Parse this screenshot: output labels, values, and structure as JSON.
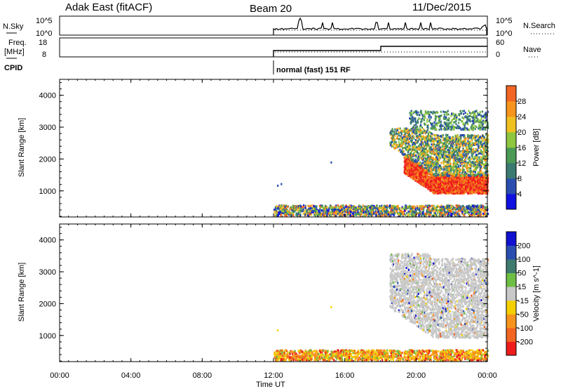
{
  "header": {
    "title": "Adak East (fitACF)",
    "beam": "Beam 20",
    "date": "11/Dec/2015"
  },
  "panels": {
    "nsky_label": "N.Sky",
    "nsky_ticks": [
      "10^5",
      "10^0"
    ],
    "nsearch_label": "N.Search",
    "freq_label_1": "Freq.",
    "freq_label_2": "[MHz]",
    "freq_ticks": [
      "18",
      "8"
    ],
    "nave_label": "Nave",
    "nave_ticks": [
      "60",
      "0"
    ],
    "cpid_label": "CPID",
    "cpid_text": "normal (fast) 151 RF"
  },
  "colors": {
    "power_scale": [
      "#1010e0",
      "#2a4db0",
      "#3a7a70",
      "#4b9a55",
      "#8ec63f",
      "#f0c020",
      "#f7941d",
      "#f26522",
      "#ee1c1c"
    ],
    "velocity_scale": [
      "#1010d0",
      "#2a4db0",
      "#3f7a6f",
      "#6fbe44",
      "#c8c8c8",
      "#f5d000",
      "#f7941d",
      "#f26522",
      "#ee1c1c"
    ]
  },
  "chart_data": [
    {
      "type": "heatmap",
      "title": "",
      "xlabel": "Time UT",
      "ylabel": "Slant Range [km]",
      "xlim": [
        "00:00",
        "24:00"
      ],
      "ylim": [
        180,
        4500
      ],
      "x_ticks": [
        "00:00",
        "04:00",
        "08:00",
        "12:00",
        "16:00",
        "20:00",
        "00:00"
      ],
      "y_ticks": [
        1000,
        2000,
        3000,
        4000
      ],
      "colorbar": {
        "label": "Power [dB]",
        "ticks": [
          4,
          8,
          12,
          16,
          20,
          24,
          28
        ],
        "range": [
          0,
          30
        ]
      },
      "data_start_hour": 12,
      "regions": [
        {
          "x": [
            12,
            24
          ],
          "y": [
            180,
            550
          ],
          "value": "mixed"
        },
        {
          "x": [
            19.5,
            24
          ],
          "y": [
            900,
            1700
          ],
          "value": 26
        },
        {
          "x": [
            18.5,
            24
          ],
          "y": [
            1400,
            2900
          ],
          "value": 14
        },
        {
          "x": [
            19.5,
            24
          ],
          "y": [
            2900,
            3550
          ],
          "value": 12
        }
      ]
    },
    {
      "type": "heatmap",
      "title": "",
      "xlabel": "Time UT",
      "ylabel": "Slant Range [km]",
      "xlim": [
        "00:00",
        "24:00"
      ],
      "ylim": [
        180,
        4500
      ],
      "x_ticks": [
        "00:00",
        "04:00",
        "08:00",
        "12:00",
        "16:00",
        "20:00",
        "00:00"
      ],
      "y_ticks": [
        1000,
        2000,
        3000,
        4000
      ],
      "colorbar": {
        "label": "Velocity [m s^-1]",
        "ticks": [
          200,
          100,
          50,
          15,
          -15,
          -50,
          -100,
          -200
        ]
      },
      "data_start_hour": 12,
      "regions": [
        {
          "x": [
            12,
            24
          ],
          "y": [
            180,
            550
          ],
          "value": -60
        },
        {
          "x": [
            18.5,
            24
          ],
          "y": [
            900,
            3550
          ],
          "value": 0
        }
      ]
    },
    {
      "type": "line",
      "title": "",
      "series": [
        {
          "name": "N.Sky",
          "x_range": [
            12,
            24
          ]
        }
      ],
      "ylim": [
        "10^0",
        "10^5"
      ]
    },
    {
      "type": "line",
      "title": "",
      "series": [
        {
          "name": "Freq.",
          "steps": [
            {
              "x": [
                12,
                18
              ],
              "y": 10
            },
            {
              "x": [
                18,
                24
              ],
              "y": 12
            }
          ]
        }
      ],
      "ylim": [
        8,
        18
      ]
    }
  ]
}
